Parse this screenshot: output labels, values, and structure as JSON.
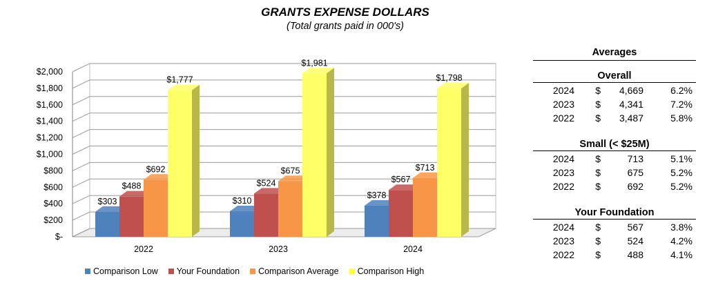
{
  "chart_data": {
    "type": "bar",
    "title": "GRANTS EXPENSE DOLLARS",
    "subtitle": "(Total grants paid in 000's)",
    "categories": [
      "2022",
      "2023",
      "2024"
    ],
    "series": [
      {
        "name": "Comparison Low",
        "values": [
          303,
          310,
          378
        ],
        "labels": [
          "$303",
          "$310",
          "$378"
        ]
      },
      {
        "name": "Your Foundation",
        "values": [
          488,
          524,
          567
        ],
        "labels": [
          "$488",
          "$524",
          "$567"
        ]
      },
      {
        "name": "Comparison Average",
        "values": [
          692,
          675,
          713
        ],
        "labels": [
          "$692",
          "$675",
          "$713"
        ]
      },
      {
        "name": "Comparison High",
        "values": [
          1777,
          1981,
          1798
        ],
        "labels": [
          "$1,777",
          "$1,981",
          "$1,798"
        ]
      }
    ],
    "colors": [
      "#4f81bd",
      "#c0504d",
      "#f79646",
      "#ffff66"
    ],
    "ylim": [
      0,
      2000
    ],
    "yticks": [
      "$-",
      "$200",
      "$400",
      "$600",
      "$800",
      "$1,000",
      "$1,200",
      "$1,400",
      "$1,600",
      "$1,800",
      "$2,000"
    ],
    "grid": true,
    "legend_position": "bottom",
    "style": "3d-column"
  },
  "averages": {
    "title": "Averages",
    "sections": [
      {
        "title": "Overall",
        "rows": [
          {
            "year": "2024",
            "dollar": "$",
            "value": "4,669",
            "pct": "6.2%"
          },
          {
            "year": "2023",
            "dollar": "$",
            "value": "4,341",
            "pct": "7.2%"
          },
          {
            "year": "2022",
            "dollar": "$",
            "value": "3,487",
            "pct": "5.8%"
          }
        ]
      },
      {
        "title": "Small (< $25M)",
        "rows": [
          {
            "year": "2024",
            "dollar": "$",
            "value": "713",
            "pct": "5.1%"
          },
          {
            "year": "2023",
            "dollar": "$",
            "value": "675",
            "pct": "5.2%"
          },
          {
            "year": "2022",
            "dollar": "$",
            "value": "692",
            "pct": "5.2%"
          }
        ]
      },
      {
        "title": "Your Foundation",
        "rows": [
          {
            "year": "2024",
            "dollar": "$",
            "value": "567",
            "pct": "3.8%"
          },
          {
            "year": "2023",
            "dollar": "$",
            "value": "524",
            "pct": "4.2%"
          },
          {
            "year": "2022",
            "dollar": "$",
            "value": "488",
            "pct": "4.1%"
          }
        ]
      }
    ]
  }
}
